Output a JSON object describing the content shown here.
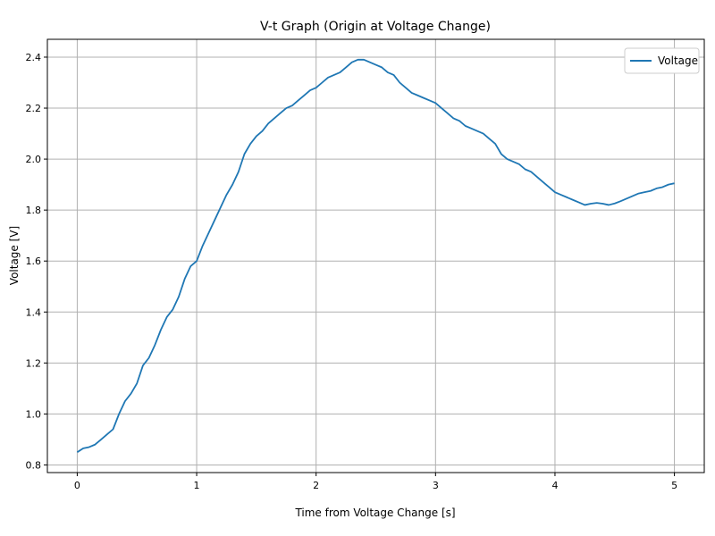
{
  "chart_data": {
    "type": "line",
    "title": "V-t Graph (Origin at Voltage Change)",
    "xlabel": "Time from Voltage Change [s]",
    "ylabel": "Voltage [V]",
    "xlim": [
      -0.25,
      5.25
    ],
    "ylim": [
      0.77,
      2.47
    ],
    "xticks": [
      0,
      1,
      2,
      3,
      4,
      5
    ],
    "xtick_labels": [
      "0",
      "1",
      "2",
      "3",
      "4",
      "5"
    ],
    "yticks": [
      0.8,
      1.0,
      1.2,
      1.4,
      1.6,
      1.8,
      2.0,
      2.2,
      2.4
    ],
    "ytick_labels": [
      "0.8",
      "1.0",
      "1.2",
      "1.4",
      "1.6",
      "1.8",
      "2.0",
      "2.2",
      "2.4"
    ],
    "grid": true,
    "legend_position": "top-right",
    "series": [
      {
        "name": "Voltage",
        "color": "#1f77b4",
        "x": [
          0.0,
          0.05,
          0.1,
          0.15,
          0.2,
          0.25,
          0.3,
          0.35,
          0.4,
          0.45,
          0.5,
          0.55,
          0.6,
          0.65,
          0.7,
          0.75,
          0.8,
          0.85,
          0.9,
          0.95,
          1.0,
          1.05,
          1.1,
          1.15,
          1.2,
          1.25,
          1.3,
          1.35,
          1.4,
          1.45,
          1.5,
          1.55,
          1.6,
          1.65,
          1.7,
          1.75,
          1.8,
          1.85,
          1.9,
          1.95,
          2.0,
          2.05,
          2.1,
          2.15,
          2.2,
          2.25,
          2.3,
          2.35,
          2.4,
          2.45,
          2.5,
          2.55,
          2.6,
          2.65,
          2.7,
          2.75,
          2.8,
          2.85,
          2.9,
          2.95,
          3.0,
          3.05,
          3.1,
          3.15,
          3.2,
          3.25,
          3.3,
          3.35,
          3.4,
          3.45,
          3.5,
          3.55,
          3.6,
          3.65,
          3.7,
          3.75,
          3.8,
          3.85,
          3.9,
          3.95,
          4.0,
          4.05,
          4.1,
          4.15,
          4.2,
          4.25,
          4.3,
          4.35,
          4.4,
          4.45,
          4.5,
          4.55,
          4.6,
          4.65,
          4.7,
          4.75,
          4.8,
          4.85,
          4.9,
          4.95,
          5.0
        ],
        "y": [
          0.85,
          0.865,
          0.87,
          0.88,
          0.9,
          0.92,
          0.94,
          1.0,
          1.05,
          1.08,
          1.12,
          1.19,
          1.22,
          1.27,
          1.33,
          1.38,
          1.41,
          1.46,
          1.53,
          1.58,
          1.6,
          1.66,
          1.71,
          1.76,
          1.81,
          1.86,
          1.9,
          1.95,
          2.02,
          2.06,
          2.09,
          2.11,
          2.14,
          2.16,
          2.18,
          2.2,
          2.21,
          2.23,
          2.25,
          2.27,
          2.28,
          2.3,
          2.32,
          2.33,
          2.34,
          2.36,
          2.38,
          2.39,
          2.39,
          2.38,
          2.37,
          2.36,
          2.34,
          2.33,
          2.3,
          2.28,
          2.26,
          2.25,
          2.24,
          2.23,
          2.22,
          2.2,
          2.18,
          2.16,
          2.15,
          2.13,
          2.12,
          2.11,
          2.1,
          2.08,
          2.06,
          2.02,
          2.0,
          1.99,
          1.98,
          1.96,
          1.95,
          1.93,
          1.91,
          1.89,
          1.87,
          1.86,
          1.85,
          1.84,
          1.83,
          1.82,
          1.825,
          1.828,
          1.825,
          1.82,
          1.826,
          1.835,
          1.845,
          1.855,
          1.865,
          1.87,
          1.875,
          1.885,
          1.89,
          1.9,
          1.905
        ]
      }
    ]
  }
}
